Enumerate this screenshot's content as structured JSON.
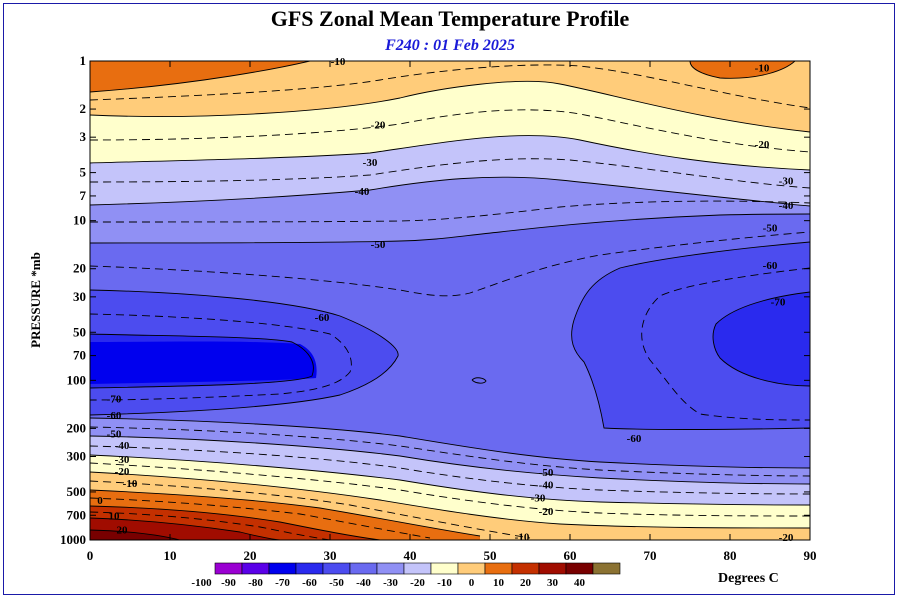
{
  "chart_data": {
    "type": "heatmap",
    "title": "GFS Zonal Mean Temperature Profile",
    "subtitle": "F240 : 01 Feb 2025",
    "ylabel": "PRESSURE *mb",
    "xlabel": "",
    "x_ticks": [
      0,
      10,
      20,
      30,
      40,
      50,
      60,
      70,
      80,
      90
    ],
    "y_ticks": [
      1,
      2,
      3,
      5,
      7,
      10,
      20,
      30,
      50,
      70,
      100,
      200,
      300,
      500,
      700,
      1000
    ],
    "y_scale": "log",
    "xlim": [
      0,
      90
    ],
    "ylim": [
      1000,
      1
    ],
    "colorbar": {
      "levels": [
        -100,
        -90,
        -80,
        -70,
        -60,
        -50,
        -40,
        -30,
        -20,
        -10,
        0,
        10,
        20,
        30,
        40
      ],
      "colors": [
        "#9a00d2",
        "#5a00e8",
        "#0000ee",
        "#2a2aee",
        "#4c4cef",
        "#6a6af0",
        "#9090f4",
        "#c4c4fa",
        "#ffffcc",
        "#ffcc7a",
        "#e86e10",
        "#c43000",
        "#a00c00",
        "#780000"
      ],
      "top_color": "#8b7232",
      "unit_label": "Degrees C"
    },
    "contour_labels": [
      {
        "text": "-10",
        "lat": 31,
        "p": 1
      },
      {
        "text": "-10",
        "lat": 84,
        "p": 1.1
      },
      {
        "text": "-20",
        "lat": 36,
        "p": 2.5
      },
      {
        "text": "-20",
        "lat": 84,
        "p": 3.3
      },
      {
        "text": "-30",
        "lat": 35,
        "p": 4.3
      },
      {
        "text": "-30",
        "lat": 87,
        "p": 5.6
      },
      {
        "text": "-40",
        "lat": 34,
        "p": 6.5
      },
      {
        "text": "-40",
        "lat": 87,
        "p": 8
      },
      {
        "text": "-50",
        "lat": 36,
        "p": 14
      },
      {
        "text": "-50",
        "lat": 85,
        "p": 11
      },
      {
        "text": "-60",
        "lat": 29,
        "p": 40
      },
      {
        "text": "-60",
        "lat": 85,
        "p": 19
      },
      {
        "text": "-60",
        "lat": 68,
        "p": 230
      },
      {
        "text": "-70",
        "lat": 86,
        "p": 32
      },
      {
        "text": "-70",
        "lat": 3,
        "p": 130
      },
      {
        "text": "-60",
        "lat": 3,
        "p": 165
      },
      {
        "text": "-50",
        "lat": 3,
        "p": 215
      },
      {
        "text": "-40",
        "lat": 4,
        "p": 255
      },
      {
        "text": "-30",
        "lat": 4,
        "p": 310
      },
      {
        "text": "-20",
        "lat": 4,
        "p": 370
      },
      {
        "text": "-10",
        "lat": 5,
        "p": 440
      },
      {
        "text": "0",
        "lat": 1,
        "p": 560
      },
      {
        "text": "10",
        "lat": 3,
        "p": 700
      },
      {
        "text": "20",
        "lat": 4,
        "p": 860
      },
      {
        "text": "-50",
        "lat": 57,
        "p": 375
      },
      {
        "text": "-40",
        "lat": 57,
        "p": 450
      },
      {
        "text": "-30",
        "lat": 56,
        "p": 540
      },
      {
        "text": "-20",
        "lat": 57,
        "p": 660
      },
      {
        "text": "-10",
        "lat": 54,
        "p": 950
      },
      {
        "text": "-20",
        "lat": 87,
        "p": 960
      }
    ]
  }
}
